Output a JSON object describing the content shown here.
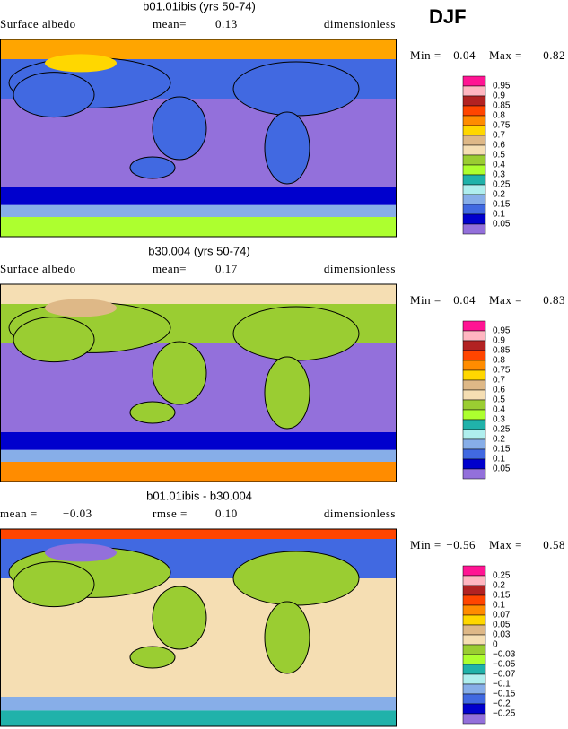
{
  "season": "DJF",
  "panels": [
    {
      "title": "b01.01ibis (yrs 50-74)",
      "row": [
        "Surface albedo",
        "mean=",
        "0.13",
        "dimensionless"
      ],
      "stats": [
        "Min =",
        "0.04",
        "Max =",
        "0.82"
      ],
      "colorbar": {
        "labels": [
          "0.95",
          "0.9",
          "0.85",
          "0.8",
          "0.75",
          "0.7",
          "0.6",
          "0.5",
          "0.4",
          "0.3",
          "0.25",
          "0.2",
          "0.15",
          "0.1",
          "0.05"
        ]
      }
    },
    {
      "title": "b30.004 (yrs 50-74)",
      "row": [
        "Surface albedo",
        "mean=",
        "0.17",
        "dimensionless"
      ],
      "stats": [
        "Min =",
        "0.04",
        "Max =",
        "0.83"
      ],
      "colorbar": {
        "labels": [
          "0.95",
          "0.9",
          "0.85",
          "0.8",
          "0.75",
          "0.7",
          "0.6",
          "0.5",
          "0.4",
          "0.3",
          "0.25",
          "0.2",
          "0.15",
          "0.1",
          "0.05"
        ]
      }
    },
    {
      "title": "b01.01ibis - b30.004",
      "row": [
        "mean =",
        "−0.03",
        "rmse =",
        "0.10",
        "dimensionless"
      ],
      "stats": [
        "Min =",
        "−0.56",
        "Max =",
        "0.58"
      ],
      "colorbar": {
        "labels": [
          "0.25",
          "0.2",
          "0.15",
          "0.1",
          "0.07",
          "0.05",
          "0.03",
          "0",
          "−0.03",
          "−0.05",
          "−0.07",
          "−0.1",
          "−0.15",
          "−0.2",
          "−0.25"
        ]
      }
    }
  ]
}
